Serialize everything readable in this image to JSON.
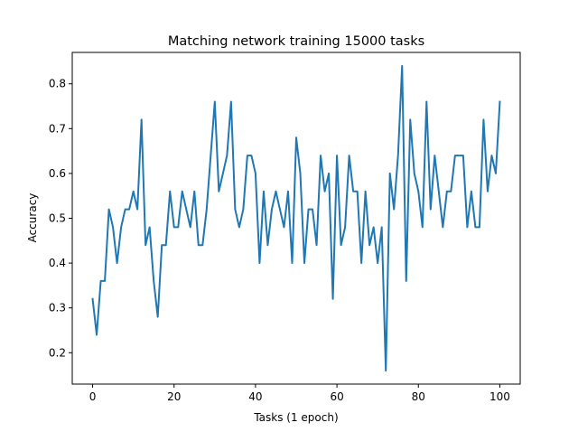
{
  "chart_data": {
    "type": "line",
    "title": "Matching network training 15000 tasks",
    "xlabel": "Tasks (1 epoch)",
    "ylabel": "Accuracy",
    "xlim": [
      -5,
      105
    ],
    "ylim": [
      0.13,
      0.87
    ],
    "xticks": [
      0,
      20,
      40,
      60,
      80,
      100
    ],
    "yticks": [
      0.2,
      0.3,
      0.4,
      0.5,
      0.6,
      0.7,
      0.8
    ],
    "grid": false,
    "color": "#1f77b4",
    "series": [
      {
        "name": "",
        "x": [
          0,
          1,
          2,
          3,
          4,
          5,
          6,
          7,
          8,
          9,
          10,
          11,
          12,
          13,
          14,
          15,
          16,
          17,
          18,
          19,
          20,
          21,
          22,
          23,
          24,
          25,
          26,
          27,
          28,
          29,
          30,
          31,
          32,
          33,
          34,
          35,
          36,
          37,
          38,
          39,
          40,
          41,
          42,
          43,
          44,
          45,
          46,
          47,
          48,
          49,
          50,
          51,
          52,
          53,
          54,
          55,
          56,
          57,
          58,
          59,
          60,
          61,
          62,
          63,
          64,
          65,
          66,
          67,
          68,
          69,
          70,
          71,
          72,
          73,
          74,
          75,
          76,
          77,
          78,
          79,
          80,
          81,
          82,
          83,
          84,
          85,
          86,
          87,
          88,
          89,
          90,
          91,
          92,
          93,
          94,
          95,
          96,
          97,
          98,
          99,
          100
        ],
        "y": [
          0.32,
          0.24,
          0.36,
          0.36,
          0.52,
          0.48,
          0.4,
          0.48,
          0.52,
          0.52,
          0.56,
          0.52,
          0.72,
          0.44,
          0.48,
          0.36,
          0.28,
          0.44,
          0.44,
          0.56,
          0.48,
          0.48,
          0.56,
          0.52,
          0.48,
          0.56,
          0.44,
          0.44,
          0.52,
          0.64,
          0.76,
          0.56,
          0.6,
          0.64,
          0.76,
          0.52,
          0.48,
          0.52,
          0.64,
          0.64,
          0.6,
          0.4,
          0.56,
          0.44,
          0.52,
          0.56,
          0.52,
          0.48,
          0.56,
          0.4,
          0.68,
          0.6,
          0.4,
          0.52,
          0.52,
          0.44,
          0.64,
          0.56,
          0.6,
          0.32,
          0.64,
          0.44,
          0.48,
          0.64,
          0.56,
          0.56,
          0.4,
          0.56,
          0.44,
          0.48,
          0.4,
          0.48,
          0.16,
          0.6,
          0.52,
          0.64,
          0.84,
          0.36,
          0.72,
          0.6,
          0.56,
          0.48,
          0.76,
          0.52,
          0.64,
          0.56,
          0.48,
          0.56,
          0.56,
          0.64,
          0.64,
          0.64,
          0.48,
          0.56,
          0.48,
          0.48,
          0.72,
          0.56,
          0.64,
          0.6,
          0.76
        ]
      }
    ]
  }
}
